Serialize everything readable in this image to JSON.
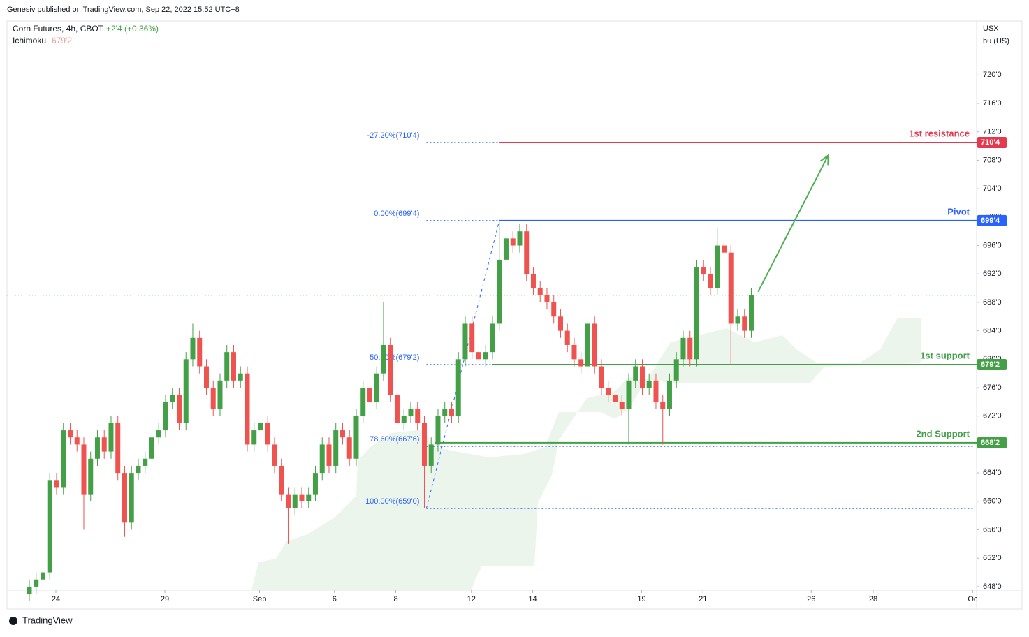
{
  "header": {
    "publisher": "Genesiv published on TradingView.com, Sep 22, 2022 15:52 UTC+8",
    "brand": "TradingView"
  },
  "legend": {
    "symbol": "Corn Futures, 4h, CBOT",
    "change": "+2'4 (+0.36%)",
    "indicator": "Ichimoku",
    "indicator_value": "679'2"
  },
  "chart_data": {
    "type": "candlestick",
    "y_unit": [
      "USX",
      "bu (US)"
    ],
    "up_color": "#43a047",
    "down_color": "#ef5350",
    "ylim": [
      647.5,
      727.6
    ],
    "yticks": [
      {
        "value": 648,
        "label": "648'0"
      },
      {
        "value": 652,
        "label": "652'0"
      },
      {
        "value": 656,
        "label": "656'0"
      },
      {
        "value": 660,
        "label": "660'0"
      },
      {
        "value": 664,
        "label": "664'0"
      },
      {
        "value": 668,
        "label": "668'0"
      },
      {
        "value": 672,
        "label": "672'0"
      },
      {
        "value": 676,
        "label": "676'0"
      },
      {
        "value": 680,
        "label": "680'0"
      },
      {
        "value": 684,
        "label": "684'0"
      },
      {
        "value": 688,
        "label": "688'0"
      },
      {
        "value": 692,
        "label": "692'0"
      },
      {
        "value": 696,
        "label": "696'0"
      },
      {
        "value": 700,
        "label": "700'0"
      },
      {
        "value": 704,
        "label": "704'0"
      },
      {
        "value": 708,
        "label": "708'0"
      },
      {
        "value": 712,
        "label": "712'0"
      },
      {
        "value": 716,
        "label": "716'0"
      },
      {
        "value": 720,
        "label": "720'0"
      }
    ],
    "xlim": [
      -3.28,
      139.08
    ],
    "xticks": [
      {
        "value": 3.9,
        "label": "24"
      },
      {
        "value": 19.9,
        "label": "29"
      },
      {
        "value": 33.8,
        "label": "Sep"
      },
      {
        "value": 44.8,
        "label": "6"
      },
      {
        "value": 53.8,
        "label": "8"
      },
      {
        "value": 64.9,
        "label": "12"
      },
      {
        "value": 73.9,
        "label": "14"
      },
      {
        "value": 89.9,
        "label": "19"
      },
      {
        "value": 98.9,
        "label": "21"
      },
      {
        "value": 114.8,
        "label": "26"
      },
      {
        "value": 123.9,
        "label": "28"
      },
      {
        "value": 138.5,
        "label": "Oc"
      }
    ],
    "open": [
      647,
      648,
      649,
      650,
      663,
      662,
      670,
      669,
      668,
      661,
      666,
      669,
      667,
      671,
      664,
      657,
      664,
      665,
      666,
      669,
      670,
      674,
      675,
      671,
      680,
      683,
      679,
      676,
      673,
      677,
      681,
      677,
      678,
      668,
      670,
      671,
      668,
      665,
      661,
      659,
      661,
      660,
      661,
      664,
      668,
      665,
      670,
      669,
      666,
      672,
      676,
      674,
      678,
      682,
      675,
      671,
      672,
      673,
      671,
      665,
      668,
      672,
      673,
      672,
      680,
      685,
      681,
      680,
      681,
      685,
      694,
      697,
      696,
      698,
      692,
      690,
      689,
      688,
      686,
      684,
      682,
      680,
      679,
      685,
      679,
      676,
      675,
      674,
      673,
      677,
      679,
      676,
      677,
      674,
      673,
      677,
      680,
      683,
      680,
      693,
      692,
      690,
      696,
      695,
      685,
      686,
      684
    ],
    "high": [
      649,
      650,
      651,
      664,
      664,
      671,
      671,
      670,
      669,
      667,
      670,
      670,
      672,
      672,
      665,
      665,
      666,
      667,
      670,
      671,
      675,
      676,
      676,
      681,
      685,
      684,
      680,
      677,
      678,
      682,
      682,
      679,
      679,
      671,
      672,
      672,
      669,
      666,
      662,
      662,
      662,
      662,
      665,
      669,
      669,
      671,
      671,
      670,
      673,
      677,
      677,
      679,
      688,
      683,
      676,
      673,
      674,
      674,
      672,
      669,
      673,
      674,
      674,
      681,
      686,
      686,
      682,
      682,
      686,
      699.5,
      698,
      698,
      699,
      699,
      693,
      691,
      690,
      689,
      687,
      685,
      683,
      681,
      686,
      686,
      680,
      677,
      676,
      675,
      678,
      680,
      680,
      678,
      678,
      675,
      678,
      681,
      684,
      684,
      694,
      694,
      693,
      698.5,
      697,
      696,
      687,
      687,
      690
    ],
    "low": [
      646,
      647,
      648,
      649,
      661,
      661,
      668,
      667,
      656,
      660,
      665,
      666,
      666,
      663,
      655,
      656,
      663,
      664,
      665,
      668,
      669,
      673,
      670,
      670,
      679,
      678,
      675,
      672,
      672,
      676,
      676,
      676,
      667,
      667,
      669,
      667,
      664,
      660,
      654,
      658,
      659,
      659,
      660,
      663,
      664,
      664,
      668,
      665,
      665,
      671,
      673,
      673,
      677,
      674,
      670,
      670,
      671,
      670,
      659,
      664,
      667,
      671,
      671,
      671,
      679,
      680,
      679,
      679,
      680,
      684,
      693,
      695,
      695,
      691,
      689,
      688,
      687,
      685,
      683,
      681,
      679,
      678,
      678,
      678,
      675,
      674,
      673,
      672,
      668,
      676,
      675,
      675,
      673,
      668,
      672,
      676,
      679,
      679,
      679,
      691,
      689,
      689,
      694,
      679.2,
      684,
      683,
      683
    ],
    "close": [
      648,
      649,
      650,
      663,
      662,
      670,
      669,
      668,
      661,
      666,
      669,
      667,
      671,
      664,
      657,
      664,
      665,
      666,
      669,
      670,
      674,
      675,
      671,
      680,
      683,
      679,
      676,
      673,
      677,
      681,
      677,
      678,
      668,
      670,
      671,
      668,
      665,
      661,
      659,
      661,
      660,
      661,
      664,
      668,
      665,
      670,
      669,
      666,
      672,
      676,
      674,
      678,
      682,
      675,
      671,
      672,
      673,
      671,
      665,
      668,
      672,
      673,
      672,
      680,
      685,
      681,
      680,
      681,
      685,
      694,
      697,
      696,
      698,
      692,
      690,
      689,
      688,
      686,
      684,
      682,
      680,
      679,
      685,
      679,
      676,
      675,
      674,
      673,
      677,
      679,
      676,
      677,
      674,
      673,
      677,
      680,
      683,
      680,
      693,
      692,
      690,
      696,
      695,
      685,
      686,
      684,
      689
    ],
    "last_price": 689,
    "fib_levels": [
      {
        "value": 710.5,
        "label": "-27.20%(710'4)"
      },
      {
        "value": 699.5,
        "label": "0.00%(699'4)"
      },
      {
        "value": 679.25,
        "label": "50.00%(679'2)"
      },
      {
        "value": 667.75,
        "label": "78.60%(667'6)"
      },
      {
        "value": 659,
        "label": "100.00%(659'0)"
      }
    ],
    "fib_start": 58.3,
    "fib_color": "#2962ff",
    "levels": [
      {
        "name": "1st resistance",
        "value": 710.5,
        "label": "710'4",
        "color": "#e53950",
        "start": 69.0
      },
      {
        "name": "Pivot",
        "value": 699.5,
        "label": "699'4",
        "color": "#2962ff",
        "start": 69.0
      },
      {
        "name": "1st support",
        "value": 679.25,
        "label": "679'2",
        "color": "#43a047",
        "start": 68.0
      },
      {
        "name": "2nd Support",
        "value": 668.25,
        "label": "668'2",
        "color": "#43a047",
        "start": 59.5
      }
    ],
    "arrow": {
      "from": [
        107.0,
        689.5
      ],
      "to": [
        117.3,
        708.7
      ],
      "color": "#4caf50"
    }
  }
}
